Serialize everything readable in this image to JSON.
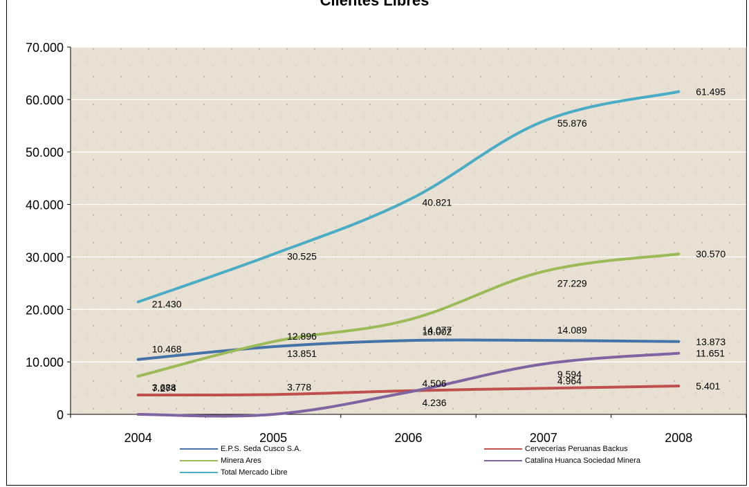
{
  "chart_data": {
    "type": "line",
    "title": "Clientes Libres",
    "categories": [
      "2004",
      "2005",
      "2006",
      "2007",
      "2008"
    ],
    "ylim": [
      0,
      70000
    ],
    "yticks": [
      0,
      10000,
      20000,
      30000,
      40000,
      50000,
      60000,
      70000
    ],
    "ytick_labels": [
      "0",
      "10.000",
      "20.000",
      "30.000",
      "40.000",
      "50.000",
      "60.000",
      "70.000"
    ],
    "grid": true,
    "legend_position": "bottom",
    "series": [
      {
        "name": "E.P.S. Seda Cusco S.A.",
        "color": "#4572a7",
        "values": [
          10468,
          12896,
          14077,
          14089,
          13873
        ],
        "labels": [
          "10.468",
          "12.896",
          "14.077",
          "14.089",
          "13.873"
        ]
      },
      {
        "name": "Cervecerías Peruanas  Backus",
        "color": "#c0504d",
        "values": [
          3688,
          3778,
          4506,
          4964,
          5401
        ],
        "labels": [
          "3.688",
          "3.778",
          "4.506",
          "4.964",
          "5.401"
        ]
      },
      {
        "name": "Minera Ares",
        "color": "#9bbb59",
        "values": [
          7274,
          13851,
          18002,
          27229,
          30570
        ],
        "labels": [
          "7.274",
          "13.851",
          "18.002",
          "27.229",
          "30.570"
        ]
      },
      {
        "name": "Catalina Huanca Sociedad  Minera",
        "color": "#8064a2",
        "values": [
          0,
          0,
          4236,
          9594,
          11651
        ],
        "labels": [
          "",
          "",
          "4.236",
          "9.594",
          "11.651"
        ]
      },
      {
        "name": "Total Mercado Libre",
        "color": "#4bacc6",
        "values": [
          21430,
          30525,
          40821,
          55876,
          61495
        ],
        "labels": [
          "21.430",
          "30.525",
          "40.821",
          "55.876",
          "61.495"
        ]
      }
    ]
  }
}
